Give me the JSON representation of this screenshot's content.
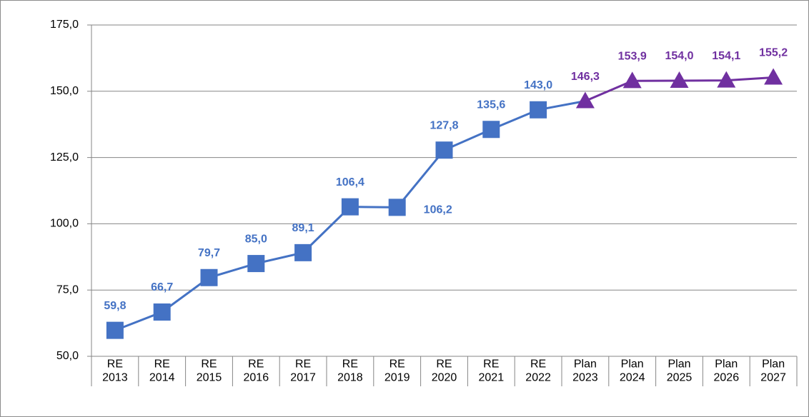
{
  "chart_data": {
    "type": "line",
    "categories": [
      "RE 2013",
      "RE 2014",
      "RE 2015",
      "RE 2016",
      "RE 2017",
      "RE 2018",
      "RE 2019",
      "RE 2020",
      "RE 2021",
      "RE 2022",
      "Plan 2023",
      "Plan 2024",
      "Plan 2025",
      "Plan 2026",
      "Plan 2027"
    ],
    "series": [
      {
        "color": "#4472c4",
        "marker": "square",
        "values": [
          59.8,
          66.7,
          79.7,
          85.0,
          89.1,
          106.4,
          106.2,
          127.8,
          135.6,
          143.0,
          null,
          null,
          null,
          null,
          null
        ],
        "value_labels": [
          "59,8",
          "66,7",
          "79,7",
          "85,0",
          "89,1",
          "106,4",
          "106,2",
          "127,8",
          "135,6",
          "143,0",
          null,
          null,
          null,
          null,
          null
        ]
      },
      {
        "color": "#7030a0",
        "marker": "triangle",
        "values": [
          null,
          null,
          null,
          null,
          null,
          null,
          null,
          null,
          null,
          null,
          146.3,
          153.9,
          154.0,
          154.1,
          155.2
        ],
        "value_labels": [
          null,
          null,
          null,
          null,
          null,
          null,
          null,
          null,
          null,
          null,
          "146,3",
          "153,9",
          "154,0",
          "154,1",
          "155,2"
        ]
      }
    ],
    "ylim": [
      50,
      175
    ],
    "yticks": [
      {
        "value": 50,
        "label": "50,0"
      },
      {
        "value": 75,
        "label": "75,0"
      },
      {
        "value": 100,
        "label": "100,0"
      },
      {
        "value": 125,
        "label": "125,0"
      },
      {
        "value": 150,
        "label": "150,0"
      },
      {
        "value": 175,
        "label": "175,0"
      }
    ],
    "grid": true
  }
}
